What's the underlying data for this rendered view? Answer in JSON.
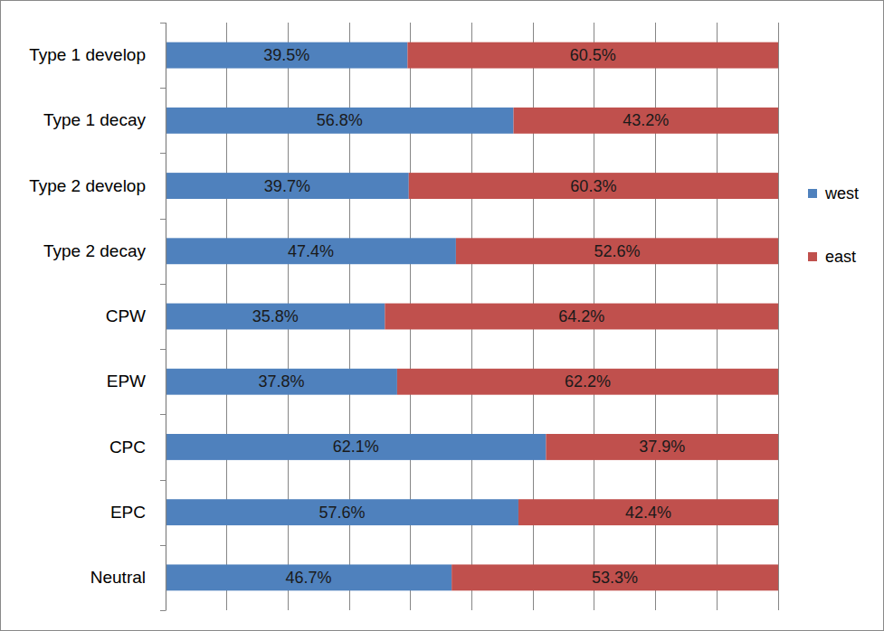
{
  "chart_data": {
    "type": "bar",
    "orientation": "horizontal",
    "stacked": true,
    "data_labels": true,
    "grid": true,
    "legend": "right",
    "tick_labels": "y",
    "categories": [
      "Type 1 develop",
      "Type 1 decay",
      "Type 2 develop",
      "Type 2 decay",
      "CPW",
      "EPW",
      "CPC",
      "EPC",
      "Neutral"
    ],
    "xlim": [
      0,
      100
    ],
    "xticks": [
      0,
      10,
      20,
      30,
      40,
      50,
      60,
      70,
      80,
      90,
      100
    ],
    "series": [
      {
        "name": "west",
        "color": "#4F81BD",
        "values": [
          39.5,
          56.8,
          39.7,
          47.4,
          35.8,
          37.8,
          62.1,
          57.6,
          46.7
        ],
        "value_labels": [
          "39.5%",
          "56.8%",
          "39.7%",
          "47.4%",
          "35.8%",
          "37.8%",
          "62.1%",
          "57.6%",
          "46.7%"
        ]
      },
      {
        "name": "east",
        "color": "#C0504D",
        "values": [
          60.5,
          43.2,
          60.3,
          52.6,
          64.2,
          62.2,
          37.9,
          42.4,
          53.3
        ],
        "value_labels": [
          "60.5%",
          "43.2%",
          "60.3%",
          "52.6%",
          "64.2%",
          "62.2%",
          "37.9%",
          "42.4%",
          "53.3%"
        ]
      }
    ]
  }
}
